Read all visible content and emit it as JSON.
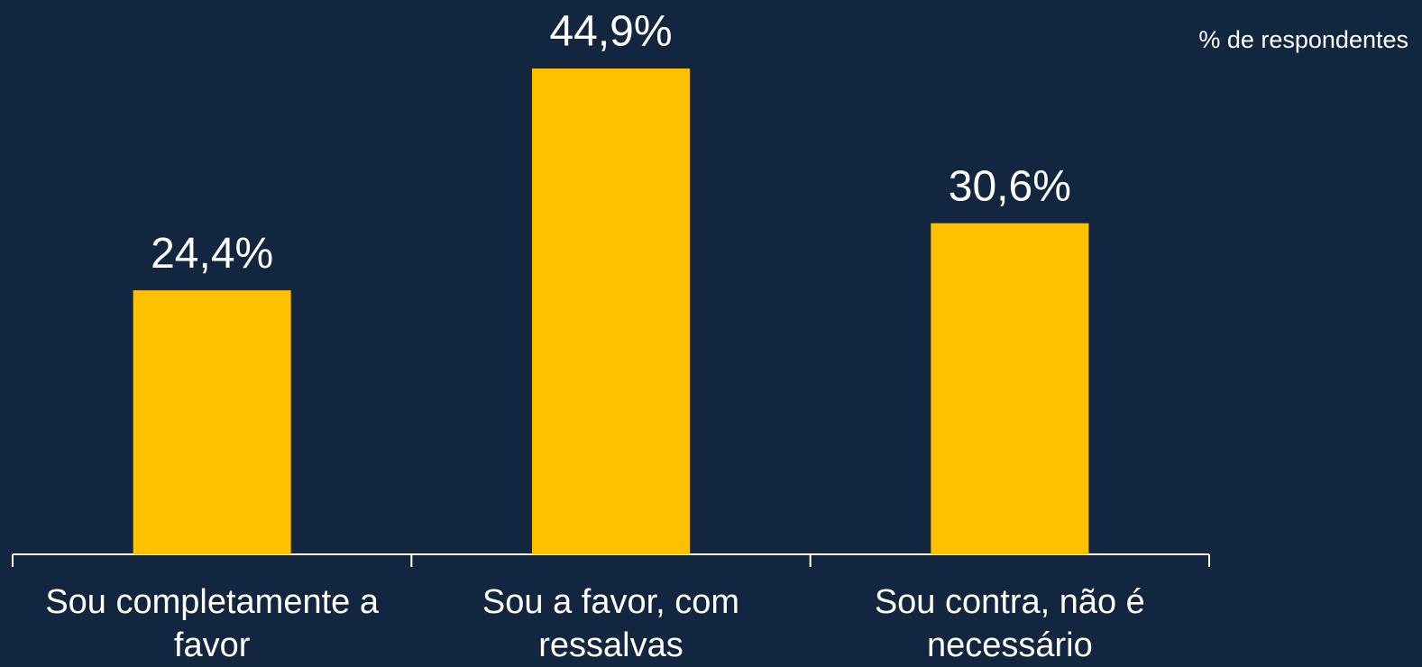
{
  "chart_data": {
    "type": "bar",
    "annotation": "% de respondentes",
    "categories": [
      "Sou completamente a favor",
      "Sou a favor, com ressalvas",
      "Sou contra, não é necessário"
    ],
    "values": [
      24.4,
      44.9,
      30.6
    ],
    "value_labels": [
      "24,4%",
      "44,9%",
      "30,6%"
    ],
    "color": "#ffc000"
  }
}
